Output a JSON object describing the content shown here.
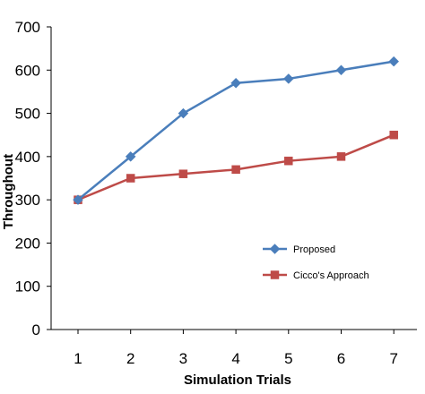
{
  "chart_data": {
    "type": "line",
    "title": "",
    "xlabel": "Simulation Trials",
    "ylabel": "Throughout",
    "x": [
      1,
      2,
      3,
      4,
      5,
      6,
      7
    ],
    "x_tick_labels": [
      "1",
      "2",
      "3",
      "4",
      "5",
      "6",
      "7"
    ],
    "ylim": [
      0,
      700
    ],
    "y_ticks": [
      0,
      100,
      200,
      300,
      400,
      500,
      600,
      700
    ],
    "y_tick_labels": [
      "0",
      "100",
      "200",
      "300",
      "400",
      "500",
      "600",
      "700"
    ],
    "grid": false,
    "legend_position": "right",
    "series": [
      {
        "name": "Proposed",
        "color": "#4a7ebb",
        "marker": "diamond",
        "values": [
          300,
          400,
          500,
          570,
          580,
          600,
          620
        ]
      },
      {
        "name": "Cicco's Approach",
        "color": "#be4b48",
        "marker": "square",
        "values": [
          300,
          350,
          360,
          370,
          390,
          400,
          450
        ]
      }
    ]
  }
}
